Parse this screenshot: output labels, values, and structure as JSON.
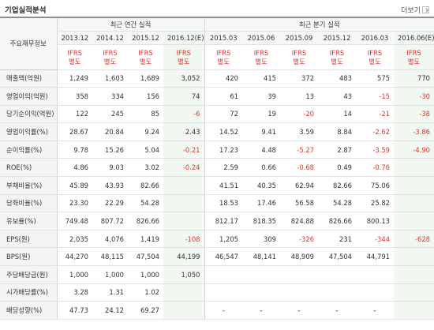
{
  "header": {
    "title": "기업실적분석",
    "more_label": "더보기"
  },
  "table": {
    "row_header": "주요재무정보",
    "annual_label": "최근 연간 실적",
    "quarter_label": "최근 분기 실적",
    "periods": [
      "2013.12",
      "2014.12",
      "2015.12",
      "2016.12(E)",
      "2015.03",
      "2015.06",
      "2015.09",
      "2015.12",
      "2016.03",
      "2016.06(E)"
    ],
    "ifrs_line1": "IFRS",
    "ifrs_line2": "별도",
    "rows": [
      {
        "label": "매출액(억원)",
        "values": [
          "1,249",
          "1,603",
          "1,689",
          "3,052",
          "420",
          "415",
          "372",
          "483",
          "575",
          "770"
        ]
      },
      {
        "label": "영업이익(억원)",
        "values": [
          "358",
          "334",
          "156",
          "74",
          "61",
          "39",
          "13",
          "43",
          "-15",
          "-30"
        ]
      },
      {
        "label": "당기순이익(억원)",
        "values": [
          "122",
          "245",
          "85",
          "-6",
          "72",
          "19",
          "-20",
          "14",
          "-21",
          "-38"
        ]
      },
      {
        "label": "영업이익률(%)",
        "values": [
          "28.67",
          "20.84",
          "9.24",
          "2.43",
          "14.52",
          "9.41",
          "3.59",
          "8.84",
          "-2.62",
          "-3.86"
        ]
      },
      {
        "label": "순이익률(%)",
        "values": [
          "9.78",
          "15.26",
          "5.04",
          "-0.21",
          "17.23",
          "4.48",
          "-5.27",
          "2.87",
          "-3.59",
          "-4.90"
        ]
      },
      {
        "label": "ROE(%)",
        "values": [
          "4.86",
          "9.03",
          "3.02",
          "-0.24",
          "2.59",
          "0.66",
          "-0.68",
          "0.49",
          "-0.76",
          ""
        ]
      },
      {
        "label": "부채비율(%)",
        "values": [
          "45.89",
          "43.93",
          "82.66",
          "",
          "41.51",
          "40.35",
          "62.94",
          "82.66",
          "75.06",
          ""
        ]
      },
      {
        "label": "당좌비율(%)",
        "values": [
          "23.30",
          "22.29",
          "54.28",
          "",
          "18.53",
          "17.46",
          "56.58",
          "54.28",
          "25.82",
          ""
        ]
      },
      {
        "label": "유보율(%)",
        "values": [
          "749.48",
          "807.72",
          "826.66",
          "",
          "812.17",
          "818.35",
          "824.88",
          "826.66",
          "800.13",
          ""
        ]
      },
      {
        "label": "EPS(원)",
        "values": [
          "2,035",
          "4,076",
          "1,419",
          "-108",
          "1,205",
          "309",
          "-326",
          "231",
          "-344",
          "-628"
        ]
      },
      {
        "label": "BPS(원)",
        "values": [
          "44,270",
          "48,115",
          "47,504",
          "44,199",
          "46,547",
          "48,141",
          "48,909",
          "47,504",
          "44,791",
          ""
        ]
      },
      {
        "label": "주당배당금(원)",
        "values": [
          "1,000",
          "1,000",
          "1,000",
          "1,050",
          "",
          "",
          "",
          "",
          "",
          ""
        ]
      },
      {
        "label": "시가배당률(%)",
        "values": [
          "3.28",
          "1.31",
          "1.02",
          "",
          "",
          "",
          "",
          "",
          "",
          ""
        ]
      },
      {
        "label": "배당성향(%)",
        "values": [
          "47.73",
          "24.12",
          "69.27",
          "",
          "-",
          "-",
          "-",
          "-",
          "-",
          ""
        ]
      }
    ]
  },
  "colors": {
    "negative": "#e0362f",
    "estimate_bg": "#f1f7f1",
    "label_bg": "#f4f4f4"
  }
}
